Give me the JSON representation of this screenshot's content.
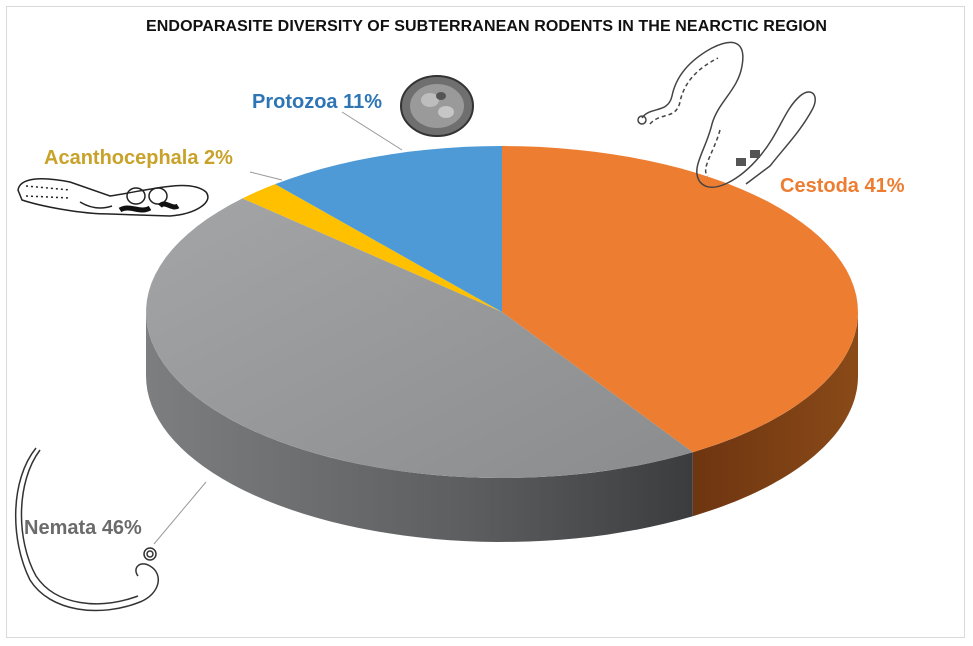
{
  "chart_data": {
    "type": "pie",
    "title": "ENDOPARASITE DIVERSITY OF SUBTERRANEAN RODENTS IN THE NEARCTIC REGION",
    "slices": [
      {
        "name": "Cestoda",
        "value": 41,
        "label": "Cestoda 41%",
        "color": "#ed7d31",
        "side": "#7a3a10",
        "label_color": "#ed7d31"
      },
      {
        "name": "Nemata",
        "value": 46,
        "label": "Nemata 46%",
        "color": "#8e9092",
        "side": "#5e6062",
        "label_color": "#6b6b6b"
      },
      {
        "name": "Acanthocephala",
        "value": 2,
        "label": "Acanthocephala 2%",
        "color": "#ffc000",
        "side": "#b08500",
        "label_color": "#c9a22a"
      },
      {
        "name": "Protozoa",
        "value": 11,
        "label": "Protozoa 11%",
        "color": "#4e9ad6",
        "side": "#2c5f8c",
        "label_color": "#2e75b6"
      }
    ],
    "start_direction": "12 o'clock, clockwise",
    "style": "3D"
  }
}
